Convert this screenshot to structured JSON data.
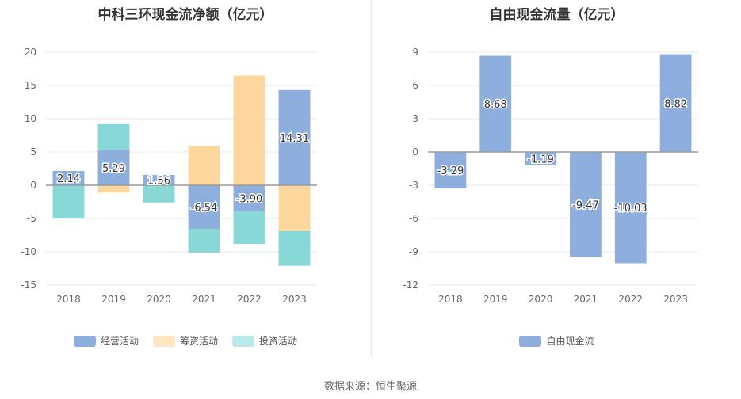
{
  "source": "数据来源：恒生聚源",
  "chart_data": [
    {
      "type": "bar",
      "stacked": true,
      "title": "中科三环现金流净额（亿元）",
      "categories": [
        "2018",
        "2019",
        "2020",
        "2021",
        "2022",
        "2023"
      ],
      "ylim": [
        -15,
        20
      ],
      "yticks": [
        20,
        15,
        10,
        5,
        0,
        -5,
        -10,
        -15
      ],
      "grid": true,
      "legend_position": "bottom",
      "series": [
        {
          "name": "经营活动",
          "color": "#8eaedd",
          "values": [
            2.14,
            5.29,
            1.56,
            -6.54,
            -3.9,
            14.31
          ]
        },
        {
          "name": "筹资活动",
          "color": "#fcd89e",
          "values": [
            0.0,
            -1.1,
            0.0,
            5.9,
            16.5,
            -6.9
          ]
        },
        {
          "name": "投资活动",
          "color": "#89d8d8",
          "values": [
            -5.0,
            4.0,
            -2.6,
            -3.6,
            -4.9,
            -5.2
          ]
        }
      ],
      "data_labels": [
        "2.14",
        "5.29",
        "1.56",
        "-6.54",
        "-3.90",
        "14.31"
      ]
    },
    {
      "type": "bar",
      "title": "自由现金流量（亿元）",
      "categories": [
        "2018",
        "2019",
        "2020",
        "2021",
        "2022",
        "2023"
      ],
      "ylim": [
        -12,
        9
      ],
      "yticks": [
        9,
        6,
        3,
        0,
        -3,
        -6,
        -9,
        -12
      ],
      "grid": true,
      "legend_position": "bottom",
      "series": [
        {
          "name": "自由现金流",
          "color": "#8eaedd",
          "values": [
            -3.29,
            8.68,
            -1.19,
            -9.47,
            -10.03,
            8.82
          ]
        }
      ],
      "data_labels": [
        "-3.29",
        "8.68",
        "-1.19",
        "-9.47",
        "-10.03",
        "8.82"
      ]
    }
  ]
}
